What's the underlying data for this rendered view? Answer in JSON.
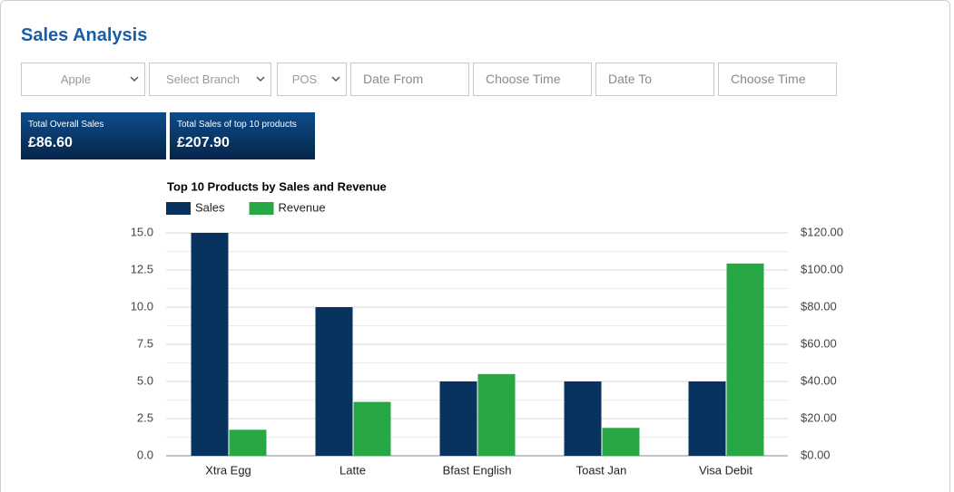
{
  "header": {
    "title": "Sales Analysis"
  },
  "filters": [
    "Apple",
    "Select Branch",
    "POS",
    "Date From",
    "Choose Time",
    "Date To",
    "Choose Time"
  ],
  "stats": [
    {
      "label": "Total Overall Sales",
      "value": "£86.60"
    },
    {
      "label": "Total Sales of top 10 products",
      "value": "£207.90"
    }
  ],
  "chart_data": {
    "type": "bar",
    "title": "Top 10 Products by Sales and Revenue",
    "categories": [
      "Xtra Egg",
      "Latte",
      "Bfast English",
      "Toast Jan",
      "Visa Debit"
    ],
    "series": [
      {
        "name": "Sales",
        "color": "#07335e",
        "values": [
          15,
          10,
          5,
          5,
          5
        ]
      },
      {
        "name": "Revenue",
        "color": "#28a745",
        "axis": "y2",
        "values": [
          14,
          29,
          44,
          15,
          103.5
        ]
      }
    ],
    "ylim": [
      0,
      15
    ],
    "yticks": [
      {
        "value": 0,
        "label": "0.0"
      },
      2.5,
      {
        "value": 5,
        "label": "5.0"
      },
      7.5,
      {
        "value": 10,
        "label": "10.0"
      },
      12.5,
      {
        "value": 15,
        "label": "15.0"
      }
    ],
    "y2lim": [
      0,
      120
    ],
    "y2ticks": [
      {
        "value": 0,
        "label": "$0.00"
      },
      {
        "value": 20,
        "label": "$20.00"
      },
      {
        "value": 40,
        "label": "$40.00"
      },
      {
        "value": 60,
        "label": "$60.00"
      },
      {
        "value": 80,
        "label": "$80.00"
      },
      {
        "value": 100,
        "label": "$100.00"
      },
      {
        "value": 120,
        "label": "$120.00"
      }
    ],
    "grid": true,
    "legend": "top-left"
  }
}
